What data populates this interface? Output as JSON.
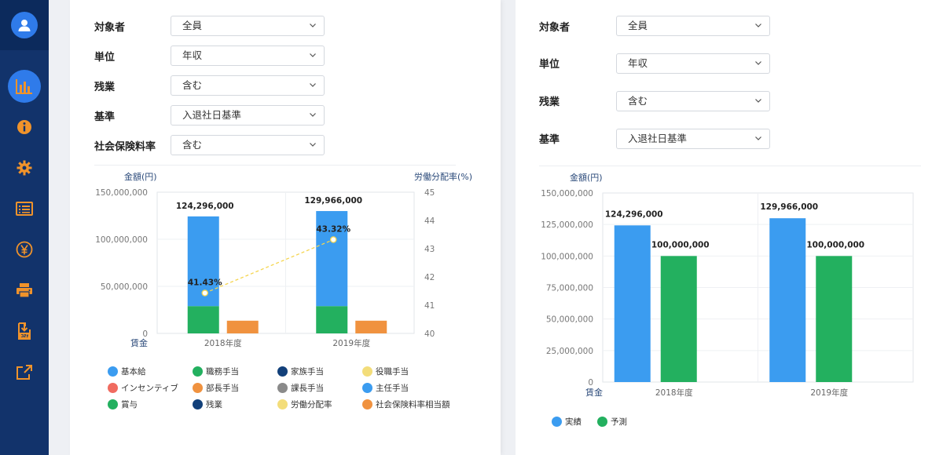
{
  "sidebar": {
    "nav": [
      {
        "icon": "bar-chart-icon",
        "active": true
      },
      {
        "icon": "info-icon",
        "active": false
      },
      {
        "icon": "gear-icon",
        "active": false
      },
      {
        "icon": "list-icon",
        "active": false
      },
      {
        "icon": "yen-icon",
        "active": false
      },
      {
        "icon": "printer-icon",
        "active": false
      },
      {
        "icon": "csv-download-icon",
        "active": false
      },
      {
        "icon": "share-icon",
        "active": false
      }
    ],
    "colors": {
      "bg": "#12336b",
      "active": "#2f7bea",
      "icon": "#f0932b"
    }
  },
  "left": {
    "filters": [
      {
        "label": "対象者",
        "value": "全員"
      },
      {
        "label": "単位",
        "value": "年収"
      },
      {
        "label": "残業",
        "value": "含む"
      },
      {
        "label": "基準",
        "value": "入退社日基準"
      },
      {
        "label": "社会保険料率",
        "value": "含む"
      }
    ],
    "legend": [
      {
        "label": "基本給",
        "color": "#3b9cf0"
      },
      {
        "label": "職務手当",
        "color": "#23b05f"
      },
      {
        "label": "家族手当",
        "color": "#12407a"
      },
      {
        "label": "役職手当",
        "color": "#f3dd7a"
      },
      {
        "label": "インセンティブ",
        "color": "#f06b60"
      },
      {
        "label": "部長手当",
        "color": "#f0923f"
      },
      {
        "label": "課長手当",
        "color": "#8a8a8a"
      },
      {
        "label": "主任手当",
        "color": "#3b9cf0"
      },
      {
        "label": "賞与",
        "color": "#23b05f"
      },
      {
        "label": "残業",
        "color": "#12407a"
      },
      {
        "label": "労働分配率",
        "color": "#f3dd7a"
      },
      {
        "label": "社会保険料率相当額",
        "color": "#f0923f"
      }
    ]
  },
  "right": {
    "filters": [
      {
        "label": "対象者",
        "value": "全員"
      },
      {
        "label": "単位",
        "value": "年収"
      },
      {
        "label": "残業",
        "value": "含む"
      },
      {
        "label": "基準",
        "value": "入退社日基準"
      }
    ],
    "legend": [
      {
        "label": "実績",
        "color": "#3b9cf0"
      },
      {
        "label": "予測",
        "color": "#23b05f"
      }
    ]
  },
  "chart_data": [
    {
      "type": "bar",
      "ylabel_left": "金額(円)",
      "ylabel_right": "労働分配率(%)",
      "x_axis_label": "賃金",
      "categories": [
        "2018年度",
        "2019年度"
      ],
      "ylim": [
        0,
        150000000
      ],
      "yticks": [
        "0",
        "50,000,000",
        "100,000,000",
        "150,000,000"
      ],
      "y2lim": [
        40,
        45
      ],
      "y2ticks": [
        "40",
        "41",
        "42",
        "43",
        "44",
        "45"
      ],
      "stacked_bar": {
        "total_labels": [
          "124,296,000",
          "129,966,000"
        ],
        "totals": [
          124296000,
          129966000
        ],
        "segments": [
          {
            "name": "職務手当",
            "color": "#23b05f",
            "values": [
              29000000,
              29000000
            ]
          },
          {
            "name": "基本給",
            "color": "#3b9cf0",
            "values": [
              95296000,
              100966000
            ]
          }
        ]
      },
      "side_bar": {
        "name": "社会保険料率相当額",
        "color": "#f0923f",
        "values": [
          13500000,
          13500000
        ]
      },
      "line": {
        "name": "労働分配率",
        "color": "#f5d54f",
        "values": [
          41.43,
          43.32
        ],
        "labels": [
          "41.43%",
          "43.32%"
        ]
      }
    },
    {
      "type": "bar",
      "ylabel": "金額(円)",
      "x_axis_label": "賃金",
      "categories": [
        "2018年度",
        "2019年度"
      ],
      "ylim": [
        0,
        150000000
      ],
      "yticks": [
        "0",
        "25,000,000",
        "50,000,000",
        "75,000,000",
        "100,000,000",
        "125,000,000",
        "150,000,000"
      ],
      "series": [
        {
          "name": "実績",
          "color": "#3b9cf0",
          "values": [
            124296000,
            129966000
          ],
          "labels": [
            "124,296,000",
            "129,966,000"
          ]
        },
        {
          "name": "予測",
          "color": "#23b05f",
          "values": [
            100000000,
            100000000
          ],
          "labels": [
            "100,000,000",
            "100,000,000"
          ]
        }
      ]
    }
  ]
}
